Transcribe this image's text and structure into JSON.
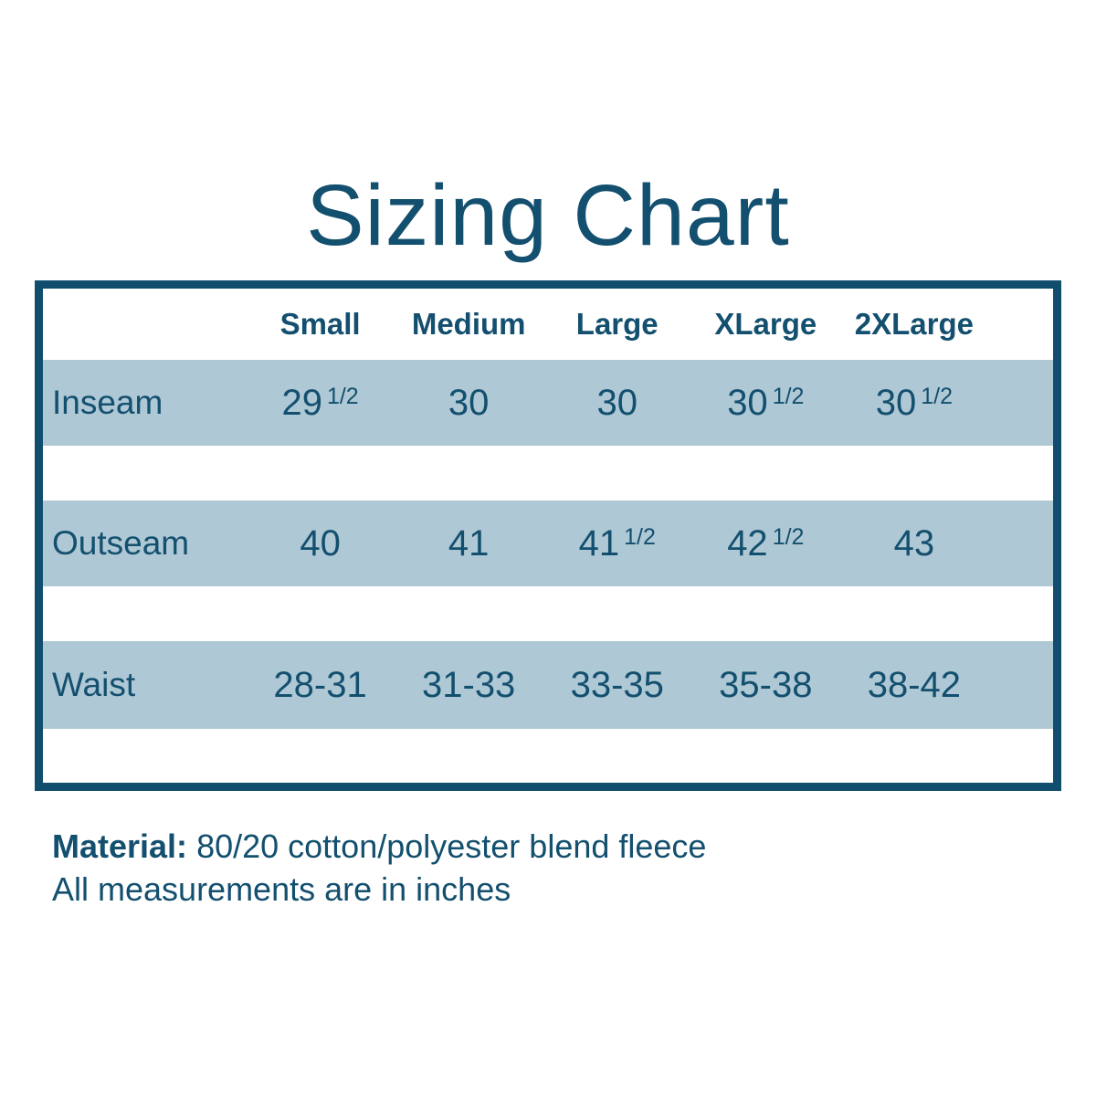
{
  "title": "Sizing Chart",
  "table": {
    "columns": [
      "Small",
      "Medium",
      "Large",
      "XLarge",
      "2XLarge"
    ],
    "rows": [
      {
        "label": "Inseam",
        "cells": [
          {
            "value": "29",
            "fraction": "1/2"
          },
          {
            "value": "30"
          },
          {
            "value": "30"
          },
          {
            "value": "30",
            "fraction": "1/2"
          },
          {
            "value": "30",
            "fraction": "1/2"
          }
        ]
      },
      {
        "label": "Outseam",
        "cells": [
          {
            "value": "40"
          },
          {
            "value": "41"
          },
          {
            "value": "41",
            "fraction": "1/2"
          },
          {
            "value": "42",
            "fraction": "1/2"
          },
          {
            "value": "43"
          }
        ]
      },
      {
        "label": "Waist",
        "cells": [
          {
            "value": "28-31"
          },
          {
            "value": "31-33"
          },
          {
            "value": "33-35"
          },
          {
            "value": "35-38"
          },
          {
            "value": "38-42"
          }
        ]
      }
    ]
  },
  "footer": {
    "material_label": "Material:",
    "material_value": "80/20 cotton/polyester blend fleece",
    "note": "All measurements are in inches"
  },
  "colors": {
    "text": "#134F6E",
    "band": "#AFC8D5",
    "border": "#114E6E",
    "background": "#FFFFFF"
  }
}
